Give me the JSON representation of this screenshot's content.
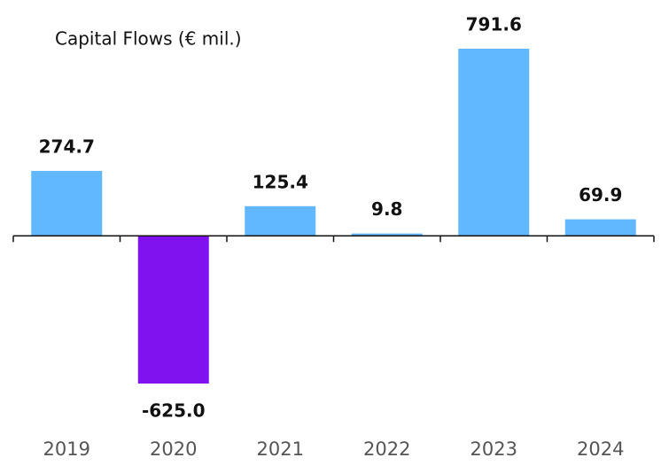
{
  "chart_data": {
    "type": "bar",
    "title": "Capital Flows (€ mil.)",
    "categories": [
      "2019",
      "2020",
      "2021",
      "2022",
      "2023",
      "2024"
    ],
    "values": [
      274.7,
      -625.0,
      125.4,
      9.8,
      791.6,
      69.9
    ],
    "value_labels": [
      "274.7",
      "-625.0",
      "125.4",
      "9.8",
      "791.6",
      "69.9"
    ],
    "color": "#62b8ff",
    "negative_color": "#7f12ee"
  }
}
